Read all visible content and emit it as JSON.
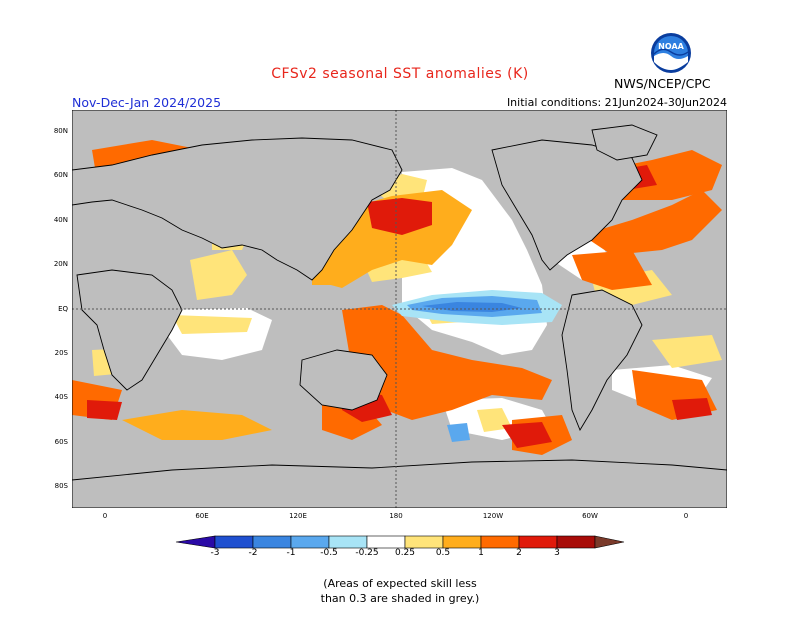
{
  "header": {
    "title": "CFSv2 seasonal SST anomalies (K)",
    "season": "Nov-Dec-Jan 2024/2025",
    "initial_conditions": "Initial conditions: 21Jun2024-30Jun2024",
    "agency": "NWS/NCEP/CPC",
    "logo_text": "NOAA"
  },
  "map": {
    "lat_labels": [
      "80N",
      "60N",
      "40N",
      "20N",
      "EQ",
      "20S",
      "40S",
      "60S",
      "80S"
    ],
    "lon_labels": [
      "0",
      "60E",
      "120E",
      "180",
      "120W",
      "60W",
      "0"
    ],
    "colors": {
      "grey_low_skill": "#bebebe",
      "ocean_neutral": "#ffffff",
      "gridline": "#555555"
    }
  },
  "colorbar": {
    "ticks": [
      "-3",
      "-2",
      "-1",
      "-0.5",
      "-0.25",
      "0.25",
      "0.5",
      "1",
      "2",
      "3"
    ],
    "colors": [
      "#2a0aa6",
      "#1f50d0",
      "#3a85e0",
      "#5aa8ee",
      "#a8e4f6",
      "#ffffff",
      "#ffe47a",
      "#ffad1c",
      "#ff6a00",
      "#e01a0a",
      "#a80c08",
      "#7a3a2a"
    ]
  },
  "footnote": {
    "line1": "(Areas of expected skill less",
    "line2": "than 0.3 are shaded in grey.)"
  }
}
